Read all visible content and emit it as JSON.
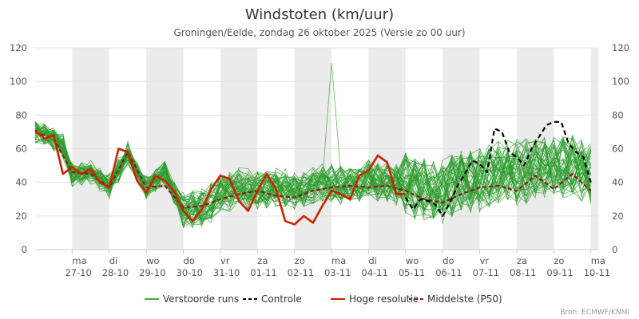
{
  "chart_data": {
    "type": "line",
    "title": "Windstoten (km/uur)",
    "subtitle": "Groningen/Eelde, zondag 26 oktober 2025 (Versie zo 00 uur)",
    "ylim": [
      0,
      120
    ],
    "yticks": [
      0,
      20,
      40,
      60,
      80,
      100,
      120
    ],
    "xlim": [
      0,
      15
    ],
    "day_labels": [
      {
        "x": 1,
        "day": "ma",
        "date": "27-10"
      },
      {
        "x": 2,
        "day": "di",
        "date": "28-10"
      },
      {
        "x": 3,
        "day": "wo",
        "date": "29-10"
      },
      {
        "x": 4,
        "day": "do",
        "date": "30-10"
      },
      {
        "x": 5,
        "day": "vr",
        "date": "31-10"
      },
      {
        "x": 6,
        "day": "za",
        "date": "01-11"
      },
      {
        "x": 7,
        "day": "zo",
        "date": "02-11"
      },
      {
        "x": 8,
        "day": "ma",
        "date": "03-11"
      },
      {
        "x": 9,
        "day": "di",
        "date": "04-11"
      },
      {
        "x": 10,
        "day": "wo",
        "date": "05-11"
      },
      {
        "x": 11,
        "day": "do",
        "date": "06-11"
      },
      {
        "x": 12,
        "day": "vr",
        "date": "07-11"
      },
      {
        "x": 13,
        "day": "za",
        "date": "08-11"
      },
      {
        "x": 14,
        "day": "zo",
        "date": "09-11"
      },
      {
        "x": 15,
        "day": "ma",
        "date": "10-11"
      }
    ],
    "shaded_days": [
      [
        1,
        2
      ],
      [
        3,
        4
      ],
      [
        5,
        6
      ],
      [
        7,
        8
      ],
      [
        9,
        10
      ],
      [
        11,
        12
      ],
      [
        13,
        14
      ],
      [
        15,
        15.2
      ]
    ],
    "series": [
      {
        "name": "Controle",
        "color": "#000000",
        "dash": "6,4",
        "x": [
          10,
          10.2,
          10.4,
          10.6,
          10.8,
          11,
          11.2,
          11.4,
          11.6,
          11.8,
          12,
          12.2,
          12.4,
          12.6,
          12.8,
          13,
          13.2,
          13.4,
          13.6,
          13.8,
          14,
          14.2,
          14.4,
          14.6,
          14.8,
          15
        ],
        "values": [
          31,
          24,
          30,
          29,
          27,
          20,
          28,
          38,
          45,
          53,
          51,
          46,
          72,
          70,
          58,
          55,
          50,
          60,
          67,
          74,
          76,
          76,
          63,
          58,
          55,
          40
        ]
      },
      {
        "name": "Hoge resolutie",
        "color": "#cc2200",
        "dash": "",
        "x": [
          0,
          0.25,
          0.5,
          0.75,
          1,
          1.25,
          1.5,
          1.75,
          2,
          2.25,
          2.5,
          2.75,
          3,
          3.25,
          3.5,
          3.75,
          4,
          4.25,
          4.5,
          4.75,
          5,
          5.25,
          5.5,
          5.75,
          6,
          6.25,
          6.5,
          6.75,
          7,
          7.25,
          7.5,
          7.75,
          8,
          8.25,
          8.5,
          8.75,
          9,
          9.25,
          9.5,
          9.75,
          10
        ],
        "values": [
          71,
          66,
          68,
          45,
          49,
          45,
          48,
          40,
          37,
          60,
          58,
          41,
          34,
          44,
          41,
          35,
          23,
          17,
          24,
          36,
          44,
          42,
          29,
          23,
          35,
          45,
          36,
          17,
          15,
          20,
          16,
          26,
          35,
          33,
          30,
          44,
          47,
          56,
          52,
          33,
          33
        ]
      },
      {
        "name": "Middelste (P50)",
        "color": "#8b1a1a",
        "dash": "5,3",
        "x": [
          0,
          0.5,
          1,
          1.5,
          2,
          2.5,
          3,
          3.5,
          4,
          4.5,
          5,
          5.5,
          6,
          6.5,
          7,
          7.5,
          8,
          8.5,
          9,
          9.5,
          10,
          10.5,
          11,
          11.5,
          12,
          12.5,
          13,
          13.5,
          14,
          14.5,
          15
        ],
        "values": [
          70,
          66,
          46,
          45,
          37,
          58,
          37,
          38,
          25,
          26,
          30,
          33,
          35,
          32,
          31,
          35,
          37,
          38,
          37,
          38,
          35,
          30,
          28,
          33,
          37,
          38,
          35,
          44,
          36,
          45,
          35
        ]
      }
    ],
    "ensemble": {
      "name": "Verstoorde runs",
      "color": "#2e9e2e",
      "count": 50
    },
    "legend": [
      {
        "label": "Verstoorde runs",
        "color": "#44aa44",
        "dash": ""
      },
      {
        "label": "Controle",
        "color": "#000000",
        "dash": "4,3"
      },
      {
        "label": "Hoge resolutie",
        "color": "#cc2200",
        "dash": ""
      },
      {
        "label": "Middelste (P50)",
        "color": "#8b1a1a",
        "dash": "4,3"
      }
    ],
    "legend_position": "bottom-center",
    "credit": "Bron: ECMWF/KNMI"
  }
}
